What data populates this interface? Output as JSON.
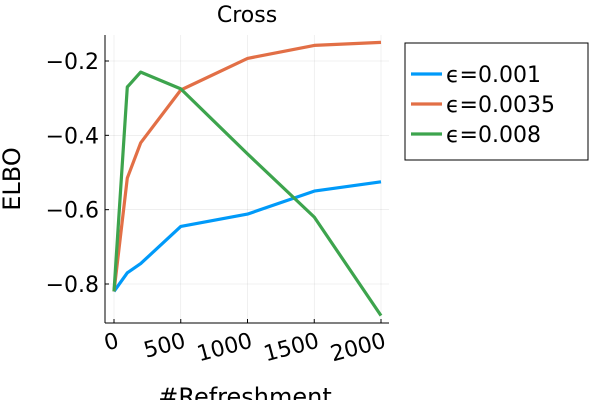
{
  "chart_data": {
    "type": "line",
    "title": "Cross",
    "xlabel": "#Refreshment",
    "ylabel": "ELBO",
    "xlim": [
      -30,
      2030
    ],
    "ylim": [
      -0.9,
      -0.12
    ],
    "xticks": [
      0,
      500,
      1000,
      1500,
      2000
    ],
    "xtick_labels": [
      "0",
      "500",
      "1000",
      "1500",
      "2000"
    ],
    "yticks": [
      -0.8,
      -0.6,
      -0.4,
      -0.2
    ],
    "ytick_labels": [
      "−0.8",
      "−0.6",
      "−0.4",
      "−0.2"
    ],
    "grid": true,
    "legend_position": "outer-top-right",
    "series": [
      {
        "name": "ϵ=0.001",
        "color": "#009af9",
        "x": [
          0,
          100,
          200,
          500,
          1000,
          1500,
          2000
        ],
        "y": [
          -0.82,
          -0.77,
          -0.745,
          -0.645,
          -0.612,
          -0.55,
          -0.525
        ]
      },
      {
        "name": "ϵ=0.0035",
        "color": "#e26f46",
        "x": [
          0,
          100,
          200,
          500,
          1000,
          1500,
          2000
        ],
        "y": [
          -0.82,
          -0.515,
          -0.42,
          -0.278,
          -0.193,
          -0.158,
          -0.15
        ]
      },
      {
        "name": "ϵ=0.008",
        "color": "#3da44d",
        "x": [
          0,
          100,
          200,
          500,
          1000,
          1500,
          2000
        ],
        "y": [
          -0.82,
          -0.27,
          -0.23,
          -0.275,
          -0.45,
          -0.62,
          -0.885
        ]
      }
    ]
  }
}
